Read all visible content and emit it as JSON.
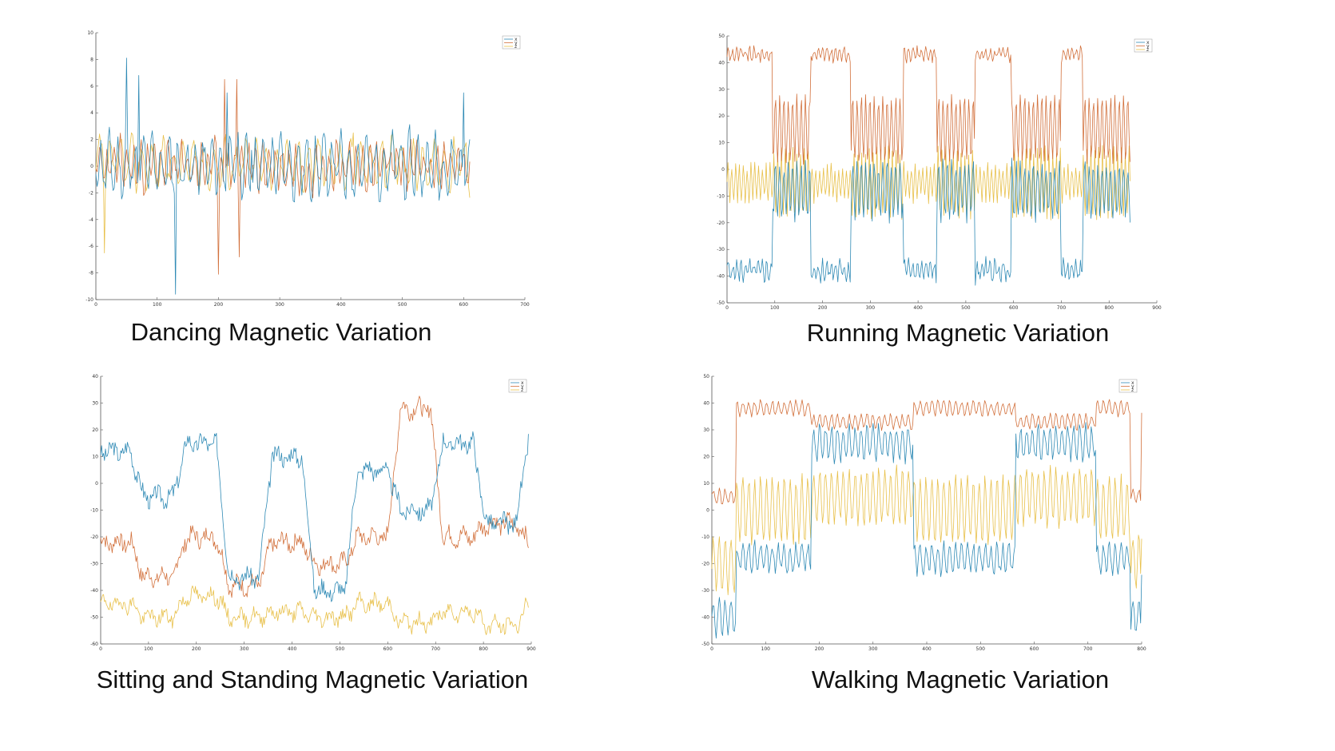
{
  "colors": {
    "x": "#2f8ab5",
    "y": "#d2703b",
    "z": "#e8c04a",
    "axis": "#555555"
  },
  "chart_data": [
    {
      "type": "line",
      "title": "Dancing Magnetic Variation",
      "xlim": [
        0,
        700
      ],
      "ylim": [
        -10,
        10
      ],
      "xticks": [
        "0",
        "100",
        "200",
        "300",
        "400",
        "500",
        "600",
        "700"
      ],
      "yticks": [
        "-10",
        "-8",
        "-6",
        "-4",
        "-2",
        "0",
        "2",
        "4",
        "6",
        "8",
        "10"
      ],
      "legend_position": "top-right",
      "length": 610,
      "series": [
        {
          "name": "x",
          "color": "#2f8ab5",
          "mean": 0,
          "amp": 2.2,
          "period": 14,
          "noise": 1.6,
          "seed": 11,
          "spikes": [
            [
              50,
              8.1
            ],
            [
              70,
              6.8
            ],
            [
              130,
              -9.6
            ],
            [
              215,
              5.5
            ],
            [
              255,
              1.2
            ],
            [
              600,
              5.5
            ]
          ]
        },
        {
          "name": "y",
          "color": "#d2703b",
          "mean": 0,
          "amp": 1.8,
          "period": 11,
          "noise": 1.4,
          "seed": 23,
          "spikes": [
            [
              210,
              6.5
            ],
            [
              230,
              6.5
            ],
            [
              200,
              -8.1
            ],
            [
              235,
              -6.8
            ]
          ]
        },
        {
          "name": "z",
          "color": "#e8c04a",
          "mean": 0.2,
          "amp": 1.8,
          "period": 17,
          "noise": 1.3,
          "seed": 37,
          "spikes": [
            [
              15,
              -6.5
            ],
            [
              420,
              2.5
            ]
          ]
        }
      ]
    },
    {
      "type": "line",
      "title": "Running Magnetic Variation",
      "xlim": [
        0,
        900
      ],
      "ylim": [
        -50,
        50
      ],
      "xticks": [
        "0",
        "100",
        "200",
        "300",
        "400",
        "500",
        "600",
        "700",
        "800",
        "900"
      ],
      "yticks": [
        "-50",
        "-40",
        "-30",
        "-20",
        "-10",
        "0",
        "10",
        "20",
        "30",
        "40",
        "50"
      ],
      "legend_position": "top-right",
      "length": 845,
      "blocks": [
        [
          0,
          95,
          0
        ],
        [
          95,
          175,
          1
        ],
        [
          175,
          260,
          0
        ],
        [
          260,
          370,
          1
        ],
        [
          370,
          440,
          0
        ],
        [
          440,
          520,
          1
        ],
        [
          520,
          595,
          0
        ],
        [
          595,
          700,
          1
        ],
        [
          700,
          745,
          0
        ],
        [
          745,
          845,
          1
        ]
      ],
      "series": [
        {
          "name": "x",
          "color": "#2f8ab5",
          "a": -38,
          "b": -8,
          "osc": [
            3,
            10
          ],
          "noise": 2.5,
          "period": 9,
          "seed": 5
        },
        {
          "name": "y",
          "color": "#d2703b",
          "a": 43,
          "b": 15,
          "osc": [
            2,
            12
          ],
          "noise": 1.5,
          "period": 9,
          "seed": 9
        },
        {
          "name": "z",
          "color": "#e8c04a",
          "a": -5,
          "b": -5,
          "osc": [
            6,
            12
          ],
          "noise": 2,
          "period": 8,
          "seed": 13
        }
      ]
    },
    {
      "type": "line",
      "title": "Sitting and Standing Magnetic Variation",
      "xlim": [
        0,
        900
      ],
      "ylim": [
        -60,
        40
      ],
      "xticks": [
        "0",
        "100",
        "200",
        "300",
        "400",
        "500",
        "600",
        "700",
        "800",
        "900"
      ],
      "yticks": [
        "-60",
        "-50",
        "-40",
        "-30",
        "-20",
        "-10",
        "0",
        "10",
        "20",
        "30",
        "40"
      ],
      "legend_position": "top-right",
      "length": 895,
      "series": [
        {
          "name": "x",
          "color": "#2f8ab5",
          "levels": [
            12,
            -5,
            15,
            -35,
            10,
            -40,
            5,
            -10,
            15,
            -15,
            18
          ],
          "noise": 3,
          "seed": 3
        },
        {
          "name": "y",
          "color": "#d2703b",
          "levels": [
            -22,
            -35,
            -20,
            -38,
            -22,
            -30,
            -20,
            28,
            -20,
            -15,
            -22
          ],
          "noise": 3,
          "seed": 7
        },
        {
          "name": "z",
          "color": "#e8c04a",
          "levels": [
            -45,
            -50,
            -42,
            -50,
            -48,
            -50,
            -45,
            -52,
            -48,
            -53,
            -45
          ],
          "noise": 2.5,
          "seed": 19
        }
      ]
    },
    {
      "type": "line",
      "title": "Walking Magnetic Variation",
      "xlim": [
        0,
        800
      ],
      "ylim": [
        -50,
        50
      ],
      "xticks": [
        "0",
        "100",
        "200",
        "300",
        "400",
        "500",
        "600",
        "700",
        "800"
      ],
      "yticks": [
        "-50",
        "-40",
        "-30",
        "-20",
        "-10",
        "0",
        "10",
        "20",
        "30",
        "40",
        "50"
      ],
      "legend_position": "top-right",
      "length": 800,
      "blocks": [
        [
          0,
          45,
          2
        ],
        [
          45,
          185,
          0
        ],
        [
          185,
          375,
          1
        ],
        [
          375,
          565,
          0
        ],
        [
          565,
          715,
          1
        ],
        [
          715,
          780,
          0
        ],
        [
          780,
          800,
          2
        ]
      ],
      "series": [
        {
          "name": "x",
          "color": "#2f8ab5",
          "a": -18,
          "b": 25,
          "c": -40,
          "osc": [
            5,
            6
          ],
          "noise": 2,
          "period": 11,
          "seed": 31
        },
        {
          "name": "y",
          "color": "#d2703b",
          "a": 38,
          "b": 33,
          "c": 5,
          "osc": [
            2.5,
            2.5
          ],
          "noise": 1,
          "period": 11,
          "seed": 41
        },
        {
          "name": "z",
          "color": "#e8c04a",
          "a": 0,
          "b": 5,
          "c": -20,
          "osc": [
            12,
            10
          ],
          "noise": 2,
          "period": 11,
          "seed": 53
        }
      ]
    }
  ]
}
